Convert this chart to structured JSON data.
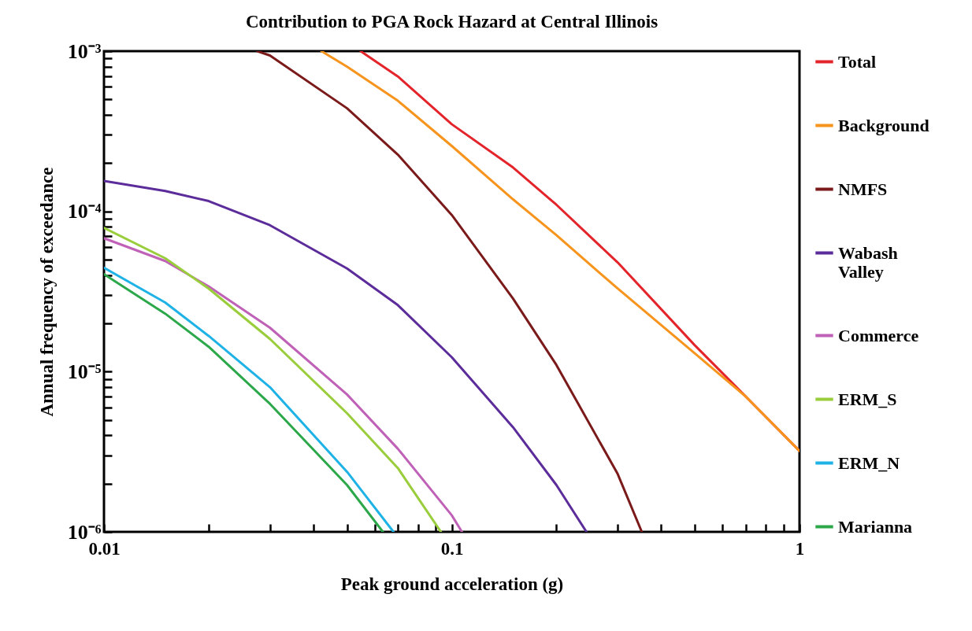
{
  "chart_data": {
    "type": "line",
    "title": "Contribution to PGA Rock Hazard at Central Illinois",
    "xlabel": "Peak ground acceleration (g)",
    "ylabel": "Annual frequency of exceedance",
    "log": "xy",
    "grid": false,
    "legend": "right",
    "marker": "none",
    "line_style": "solid",
    "xlim": [
      0.01,
      1
    ],
    "ylim": [
      1e-06,
      0.001
    ],
    "xticks": [
      0.01,
      {
        "value": 0.02,
        "label": null
      },
      {
        "value": 0.03,
        "label": null
      },
      {
        "value": 0.04,
        "label": null
      },
      {
        "value": 0.05,
        "label": null
      },
      {
        "value": 0.06,
        "label": null
      },
      {
        "value": 0.07,
        "label": null
      },
      {
        "value": 0.08,
        "label": null
      },
      {
        "value": 0.09,
        "label": null
      },
      0.1,
      {
        "value": 0.2,
        "label": null
      },
      {
        "value": 0.3,
        "label": null
      },
      {
        "value": 0.4,
        "label": null
      },
      {
        "value": 0.5,
        "label": null
      },
      {
        "value": 0.6,
        "label": null
      },
      {
        "value": 0.7,
        "label": null
      },
      {
        "value": 0.8,
        "label": null
      },
      {
        "value": 0.9,
        "label": null
      },
      1
    ],
    "yticks": [
      {
        "value": 1e-06,
        "label": "10⁻⁶"
      },
      {
        "value": 2e-06,
        "label": null
      },
      {
        "value": 3e-06,
        "label": null
      },
      {
        "value": 4e-06,
        "label": null
      },
      {
        "value": 5e-06,
        "label": null
      },
      {
        "value": 6e-06,
        "label": null
      },
      {
        "value": 7e-06,
        "label": null
      },
      {
        "value": 8e-06,
        "label": null
      },
      {
        "value": 9e-06,
        "label": null
      },
      {
        "value": 1e-05,
        "label": "10⁻⁵"
      },
      {
        "value": 2e-05,
        "label": null
      },
      {
        "value": 3e-05,
        "label": null
      },
      {
        "value": 4e-05,
        "label": null
      },
      {
        "value": 5e-05,
        "label": null
      },
      {
        "value": 6e-05,
        "label": null
      },
      {
        "value": 7e-05,
        "label": null
      },
      {
        "value": 8e-05,
        "label": null
      },
      {
        "value": 9e-05,
        "label": null
      },
      {
        "value": 0.0001,
        "label": "10⁻⁴"
      },
      {
        "value": 0.0002,
        "label": null
      },
      {
        "value": 0.0003,
        "label": null
      },
      {
        "value": 0.0004,
        "label": null
      },
      {
        "value": 0.0005,
        "label": null
      },
      {
        "value": 0.0006,
        "label": null
      },
      {
        "value": 0.0007,
        "label": null
      },
      {
        "value": 0.0008,
        "label": null
      },
      {
        "value": 0.0009,
        "label": null
      },
      {
        "value": 0.001,
        "label": "10⁻³"
      }
    ],
    "series": [
      {
        "name": "Total",
        "color": "#e3242b",
        "x": [
          0.0547,
          0.07,
          0.1,
          0.15,
          0.2,
          0.3,
          0.5,
          0.7,
          1
        ],
        "values": [
          0.001,
          0.000695,
          0.00035,
          0.000188,
          0.00011,
          4.8e-05,
          1.46e-05,
          7e-06,
          3.2e-06
        ]
      },
      {
        "name": "Background",
        "color": "#f7941d",
        "x": [
          0.0422,
          0.05,
          0.07,
          0.1,
          0.15,
          0.2,
          0.3,
          0.5,
          0.7,
          1
        ],
        "values": [
          0.001,
          0.0008,
          0.00049,
          0.000256,
          0.000119,
          7.1e-05,
          3.3e-05,
          1.3e-05,
          7e-06,
          3.2e-06
        ]
      },
      {
        "name": "NMFS",
        "color": "#7b1a1a",
        "x": [
          0.0276,
          0.03,
          0.05,
          0.07,
          0.1,
          0.15,
          0.2,
          0.3,
          0.352
        ],
        "values": [
          0.001,
          0.00094,
          0.00044,
          0.000226,
          9.5e-05,
          2.86e-05,
          1.1e-05,
          2.3e-06,
          1e-06
        ]
      },
      {
        "name": "Wabash Valley",
        "color": "#5b2c9a",
        "x": [
          0.01,
          0.015,
          0.02,
          0.03,
          0.05,
          0.07,
          0.1,
          0.15,
          0.2,
          0.244
        ],
        "values": [
          0.000155,
          0.000134,
          0.000116,
          8.2e-05,
          4.4e-05,
          2.6e-05,
          1.23e-05,
          4.5e-06,
          1.96e-06,
          1e-06
        ]
      },
      {
        "name": "Commerce",
        "color": "#c061b8",
        "x": [
          0.01,
          0.015,
          0.02,
          0.03,
          0.05,
          0.07,
          0.1,
          0.107
        ],
        "values": [
          6.8e-05,
          4.9e-05,
          3.4e-05,
          1.88e-05,
          7.2e-06,
          3.3e-06,
          1.27e-06,
          1e-06
        ]
      },
      {
        "name": "ERM_S",
        "color": "#9acd3c",
        "x": [
          0.01,
          0.015,
          0.02,
          0.03,
          0.05,
          0.07,
          0.0931
        ],
        "values": [
          7.9e-05,
          5.1e-05,
          3.3e-05,
          1.6e-05,
          5.5e-06,
          2.5e-06,
          1e-06
        ]
      },
      {
        "name": "ERM_N",
        "color": "#1fb2e6",
        "x": [
          0.01,
          0.015,
          0.02,
          0.03,
          0.05,
          0.068
        ],
        "values": [
          4.45e-05,
          2.7e-05,
          1.67e-05,
          8e-06,
          2.37e-06,
          1e-06
        ]
      },
      {
        "name": "Marianna",
        "color": "#2ca84a",
        "x": [
          0.01,
          0.015,
          0.02,
          0.03,
          0.05,
          0.0634
        ],
        "values": [
          4.06e-05,
          2.3e-05,
          1.43e-05,
          6.3e-06,
          1.96e-06,
          1e-06
        ]
      }
    ]
  }
}
